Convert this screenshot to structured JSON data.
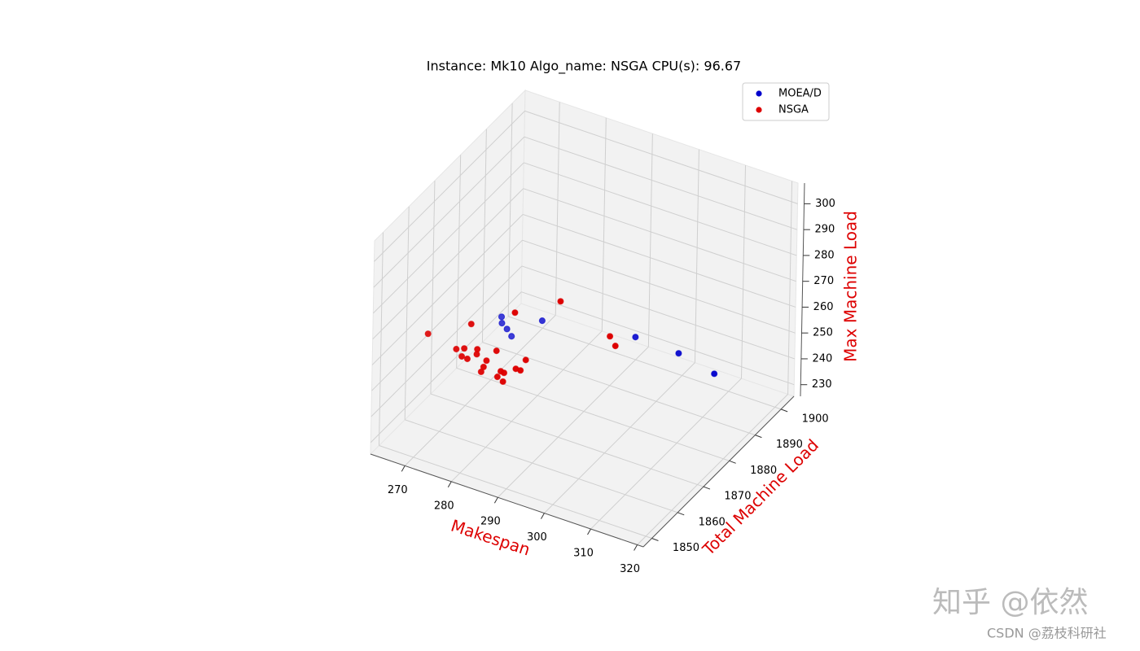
{
  "chart_data": {
    "type": "scatter3d",
    "title": "Instance: Mk10 Algo_name: NSGA CPU(s): 96.67",
    "xlabel": "Makespan",
    "ylabel": "Total Machine Load",
    "zlabel": "Max Machine Load",
    "axis_label_color": "#dd0000",
    "xlim": [
      262.6,
      321.3
    ],
    "ylim": [
      1846.7,
      1905
    ],
    "zlim": [
      225.5,
      308
    ],
    "xticks": [
      270,
      280,
      290,
      300,
      310,
      320
    ],
    "yticks": [
      1850,
      1860,
      1870,
      1880,
      1890,
      1900
    ],
    "zticks": [
      230,
      240,
      250,
      260,
      270,
      280,
      290,
      300
    ],
    "grid": true,
    "legend": "upper right",
    "series": [
      {
        "name": "MOEA/D",
        "color": "#0000cc",
        "x": [
          274.3,
          274.4,
          275.5,
          276.5,
          283.0,
          303.0,
          312.3,
          320.0
        ],
        "y": [
          1875.8,
          1875.8,
          1875.8,
          1875.8,
          1875.8,
          1875.8,
          1875.8,
          1875.8
        ],
        "z": [
          256.7,
          254.3,
          252.7,
          250.5,
          260.5,
          266.4,
          265.8,
          262.6
        ]
      },
      {
        "name": "NSGA",
        "color": "#dd0000",
        "x": [
          269.7,
          275.8,
          277.5,
          277.0,
          278.2,
          278.9,
          280.3,
          280.2,
          282.3,
          284.4,
          281.7,
          281.2,
          284.7,
          285.4,
          286.1,
          285.9,
          288.6,
          289.6,
          290.7,
          288.2,
          297.9,
          308.6,
          309.8
        ],
        "y": [
          1855.4,
          1855.4,
          1855.4,
          1855.4,
          1855.4,
          1855.4,
          1855.4,
          1855.4,
          1855.4,
          1855.4,
          1855.4,
          1855.4,
          1855.4,
          1855.4,
          1855.4,
          1855.4,
          1855.4,
          1855.4,
          1855.4,
          1855.4,
          1855.4,
          1855.4,
          1855.4
        ],
        "z": [
          267.7,
          265.5,
          266.8,
          263.4,
          263.2,
          277.1,
          268.2,
          266.2,
          265.0,
          270.1,
          262.2,
          260.0,
          260.2,
          262.8,
          262.6,
          259.1,
          265.7,
          265.7,
          270.4,
          287.2,
          297.5,
          290.5,
          287.5
        ]
      }
    ]
  },
  "watermarks": [
    "知乎 @依然",
    "CSDN @荔枝科研社"
  ]
}
